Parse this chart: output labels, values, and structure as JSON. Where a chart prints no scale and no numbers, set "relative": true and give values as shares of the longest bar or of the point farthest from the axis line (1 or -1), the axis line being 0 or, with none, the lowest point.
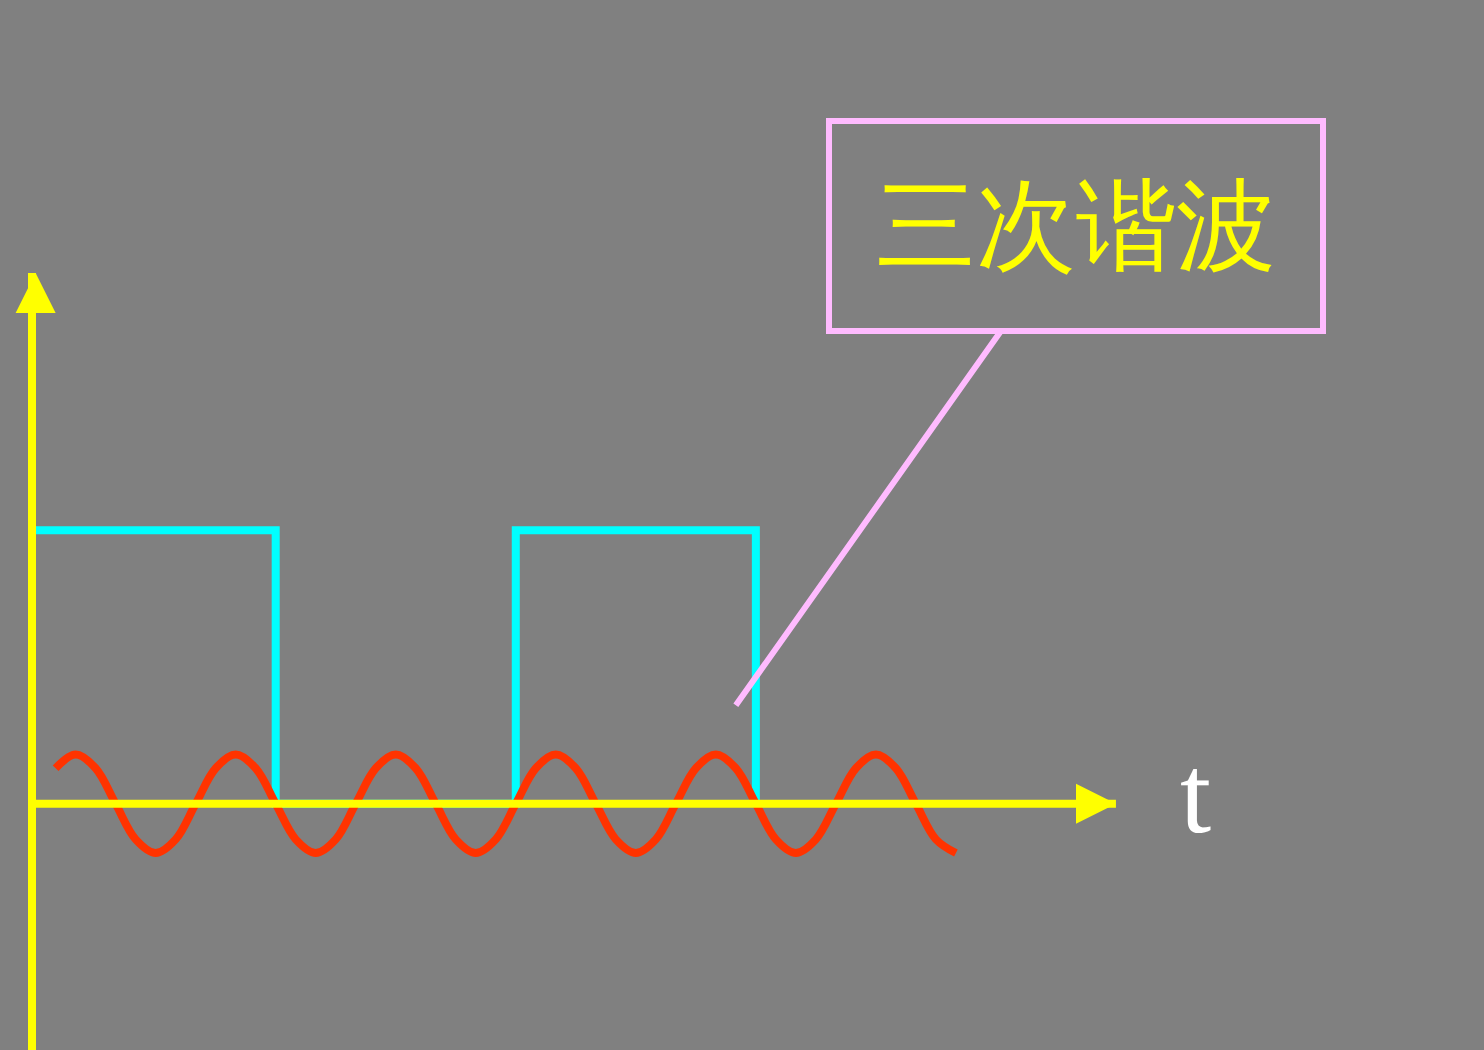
{
  "chart_data": {
    "type": "line",
    "relative": true,
    "xlabel": "t",
    "ref_lines": [
      {
        "axis": "y",
        "value": 0,
        "color": "#ffff00"
      }
    ],
    "annotations": [
      "三次谐波"
    ],
    "categories": [
      null,
      null,
      null,
      null,
      null,
      null,
      null,
      null,
      null,
      null,
      null,
      null,
      null,
      null,
      null,
      null,
      null,
      null,
      null,
      null,
      null,
      null,
      null,
      null,
      null,
      null,
      null,
      null,
      null,
      null,
      null,
      null,
      null,
      null,
      null,
      null,
      null,
      null,
      null,
      null,
      null,
      null,
      null,
      null,
      null,
      null,
      null,
      null,
      null,
      null,
      null,
      null,
      null,
      null,
      null
    ],
    "series": [
      {
        "type": "step",
        "color": "#00ffff",
        "values": [
          1,
          1,
          1,
          1,
          1,
          1,
          1,
          1,
          1,
          1,
          1,
          1,
          0,
          0,
          0,
          0,
          0,
          0,
          0,
          0,
          0,
          0,
          0,
          0,
          1,
          1,
          1,
          1,
          1,
          1,
          1,
          1,
          1,
          1,
          1,
          1,
          0,
          null,
          null,
          null,
          null,
          null,
          null,
          null,
          null,
          null,
          null,
          null,
          null,
          null,
          null,
          null,
          null,
          null,
          null
        ]
      },
      {
        "type": "line",
        "color": "#ff3300",
        "values": [
          null,
          0.13,
          0.18,
          0.13,
          0,
          -0.13,
          -0.18,
          -0.13,
          0,
          0.13,
          0.18,
          0.13,
          0,
          -0.13,
          -0.18,
          -0.13,
          0,
          0.13,
          0.18,
          0.13,
          0,
          -0.13,
          -0.18,
          -0.13,
          0,
          0.13,
          0.18,
          0.13,
          0,
          -0.13,
          -0.18,
          -0.13,
          0,
          0.13,
          0.18,
          0.13,
          0,
          -0.13,
          -0.18,
          -0.13,
          0,
          0.13,
          0.18,
          0.13,
          0,
          -0.13,
          -0.18,
          null,
          null,
          null,
          null,
          null,
          null,
          null,
          null
        ]
      }
    ]
  }
}
